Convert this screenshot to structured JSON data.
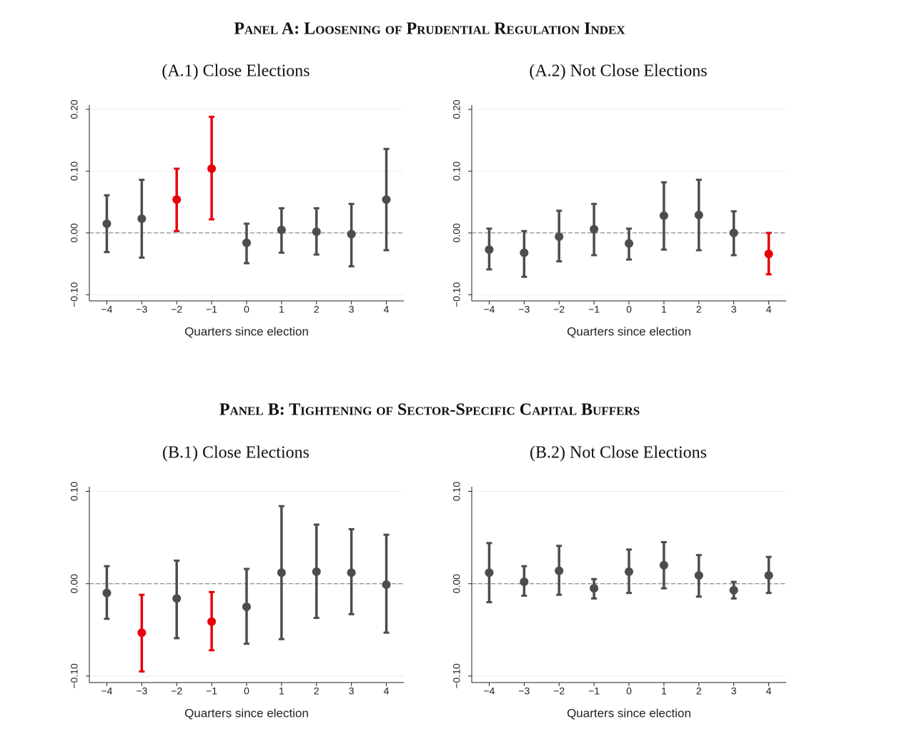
{
  "panel_titles": [
    "Panel A: Loosening of Prudential Regulation Index",
    "Panel B: Tightening of Sector-Specific Capital Buffers"
  ],
  "chart_data": [
    {
      "type": "errorbar",
      "title": "(A.1) Close Elections",
      "xlabel": "Quarters since election",
      "x": [
        -4,
        -3,
        -2,
        -1,
        0,
        1,
        2,
        3,
        4
      ],
      "values": [
        0.015,
        0.023,
        0.054,
        0.104,
        -0.016,
        0.005,
        0.002,
        -0.002,
        0.054
      ],
      "lower": [
        -0.031,
        -0.04,
        0.003,
        0.022,
        -0.049,
        -0.032,
        -0.035,
        -0.054,
        -0.028
      ],
      "upper": [
        0.061,
        0.086,
        0.104,
        0.188,
        0.015,
        0.04,
        0.04,
        0.047,
        0.136
      ],
      "colors": [
        "#4d4d4d",
        "#4d4d4d",
        "#e8000b",
        "#e8000b",
        "#4d4d4d",
        "#4d4d4d",
        "#4d4d4d",
        "#4d4d4d",
        "#4d4d4d"
      ],
      "xlim": [
        -4.5,
        4.5
      ],
      "xticks": [
        {
          "value": -4,
          "label": "−4"
        },
        {
          "value": -3,
          "label": "−3"
        },
        {
          "value": -2,
          "label": "−2"
        },
        {
          "value": -1,
          "label": "−1"
        },
        0,
        1,
        2,
        3,
        4
      ],
      "ylim": [
        -0.11,
        0.207
      ],
      "yticks": [
        {
          "value": -0.1,
          "label": "−0.10"
        },
        {
          "value": 0,
          "label": "0.00"
        },
        {
          "value": 0.1,
          "label": "0.10"
        },
        {
          "value": 0.2,
          "label": "0.20"
        }
      ],
      "hline": 0,
      "grid": true
    },
    {
      "type": "errorbar",
      "title": "(A.2) Not Close Elections",
      "xlabel": "Quarters since election",
      "x": [
        -4,
        -3,
        -2,
        -1,
        0,
        1,
        2,
        3,
        4
      ],
      "values": [
        -0.027,
        -0.032,
        -0.006,
        0.006,
        -0.017,
        0.028,
        0.029,
        0.0,
        -0.034
      ],
      "lower": [
        -0.059,
        -0.071,
        -0.046,
        -0.036,
        -0.043,
        -0.027,
        -0.028,
        -0.036,
        -0.067
      ],
      "upper": [
        0.007,
        0.003,
        0.036,
        0.047,
        0.007,
        0.082,
        0.086,
        0.035,
        0.0
      ],
      "colors": [
        "#4d4d4d",
        "#4d4d4d",
        "#4d4d4d",
        "#4d4d4d",
        "#4d4d4d",
        "#4d4d4d",
        "#4d4d4d",
        "#4d4d4d",
        "#e8000b"
      ],
      "xlim": [
        -4.5,
        4.5
      ],
      "xticks": [
        {
          "value": -4,
          "label": "−4"
        },
        {
          "value": -3,
          "label": "−3"
        },
        {
          "value": -2,
          "label": "−2"
        },
        {
          "value": -1,
          "label": "−1"
        },
        0,
        1,
        2,
        3,
        4
      ],
      "ylim": [
        -0.11,
        0.207
      ],
      "yticks": [
        {
          "value": -0.1,
          "label": "−0.10"
        },
        {
          "value": 0,
          "label": "0.00"
        },
        {
          "value": 0.1,
          "label": "0.10"
        },
        {
          "value": 0.2,
          "label": "0.20"
        }
      ],
      "hline": 0,
      "grid": true
    },
    {
      "type": "errorbar",
      "title": "(B.1) Close Elections",
      "xlabel": "Quarters since election",
      "x": [
        -4,
        -3,
        -2,
        -1,
        0,
        1,
        2,
        3,
        4
      ],
      "values": [
        -0.01,
        -0.053,
        -0.016,
        -0.041,
        -0.025,
        0.012,
        0.013,
        0.012,
        -0.001
      ],
      "lower": [
        -0.038,
        -0.095,
        -0.059,
        -0.072,
        -0.065,
        -0.06,
        -0.037,
        -0.033,
        -0.053
      ],
      "upper": [
        0.019,
        -0.012,
        0.025,
        -0.009,
        0.016,
        0.084,
        0.064,
        0.059,
        0.053
      ],
      "colors": [
        "#4d4d4d",
        "#e8000b",
        "#4d4d4d",
        "#e8000b",
        "#4d4d4d",
        "#4d4d4d",
        "#4d4d4d",
        "#4d4d4d",
        "#4d4d4d"
      ],
      "xlim": [
        -4.5,
        4.5
      ],
      "xticks": [
        {
          "value": -4,
          "label": "−4"
        },
        {
          "value": -3,
          "label": "−3"
        },
        {
          "value": -2,
          "label": "−2"
        },
        {
          "value": -1,
          "label": "−1"
        },
        0,
        1,
        2,
        3,
        4
      ],
      "ylim": [
        -0.107,
        0.105
      ],
      "yticks": [
        {
          "value": -0.1,
          "label": "−0.10"
        },
        {
          "value": 0,
          "label": "0.00"
        },
        {
          "value": 0.1,
          "label": "0.10"
        }
      ],
      "hline": 0,
      "grid": true
    },
    {
      "type": "errorbar",
      "title": "(B.2) Not Close Elections",
      "xlabel": "Quarters since election",
      "x": [
        -4,
        -3,
        -2,
        -1,
        0,
        1,
        2,
        3,
        4
      ],
      "values": [
        0.012,
        0.002,
        0.014,
        -0.005,
        0.013,
        0.02,
        0.009,
        -0.007,
        0.009
      ],
      "lower": [
        -0.02,
        -0.013,
        -0.012,
        -0.016,
        -0.01,
        -0.005,
        -0.014,
        -0.016,
        -0.01
      ],
      "upper": [
        0.044,
        0.019,
        0.041,
        0.005,
        0.037,
        0.045,
        0.031,
        0.002,
        0.029
      ],
      "colors": [
        "#4d4d4d",
        "#4d4d4d",
        "#4d4d4d",
        "#4d4d4d",
        "#4d4d4d",
        "#4d4d4d",
        "#4d4d4d",
        "#4d4d4d",
        "#4d4d4d"
      ],
      "xlim": [
        -4.5,
        4.5
      ],
      "xticks": [
        {
          "value": -4,
          "label": "−4"
        },
        {
          "value": -3,
          "label": "−3"
        },
        {
          "value": -2,
          "label": "−2"
        },
        {
          "value": -1,
          "label": "−1"
        },
        0,
        1,
        2,
        3,
        4
      ],
      "ylim": [
        -0.107,
        0.105
      ],
      "yticks": [
        {
          "value": -0.1,
          "label": "−0.10"
        },
        {
          "value": 0,
          "label": "0.00"
        },
        {
          "value": 0.1,
          "label": "0.10"
        }
      ],
      "hline": 0,
      "grid": true
    }
  ]
}
